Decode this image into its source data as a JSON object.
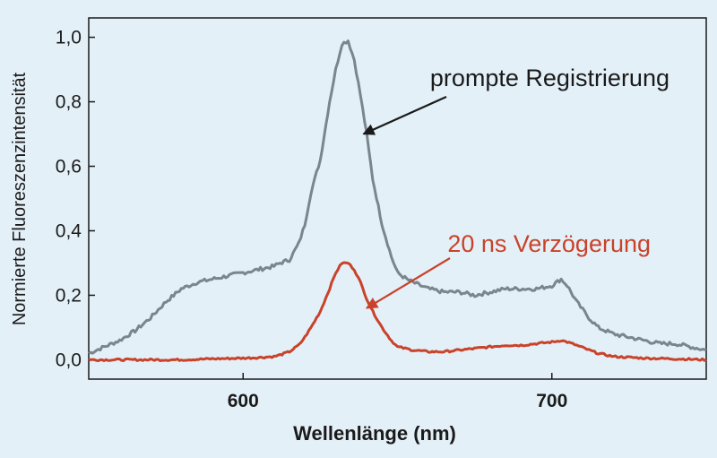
{
  "chart_data": {
    "type": "line",
    "title": "",
    "xlabel": "Wellenlänge (nm)",
    "ylabel": "Normierte Fluoreszenzintensität",
    "xlim": [
      550,
      750
    ],
    "ylim": [
      -0.06,
      1.06
    ],
    "x_ticks": [
      600,
      700
    ],
    "x_tick_labels": [
      "600",
      "700"
    ],
    "y_ticks": [
      0.0,
      0.2,
      0.4,
      0.6,
      0.8,
      1.0
    ],
    "y_tick_labels": [
      "0,0",
      "0,2",
      "0,4",
      "0,6",
      "0,8",
      "1,0"
    ],
    "grid": false,
    "series": [
      {
        "name": "prompte Registrierung",
        "color": "#7a868c",
        "x": [
          550,
          555,
          560,
          565,
          570,
          575,
          580,
          585,
          590,
          595,
          600,
          605,
          610,
          612,
          615,
          618,
          620,
          622,
          625,
          628,
          630,
          632,
          634,
          636,
          638,
          640,
          642,
          645,
          648,
          650,
          653,
          655,
          660,
          665,
          670,
          675,
          680,
          685,
          690,
          695,
          700,
          703,
          705,
          708,
          712,
          715,
          720,
          725,
          730,
          735,
          740,
          745,
          750
        ],
        "y": [
          0.02,
          0.04,
          0.06,
          0.09,
          0.13,
          0.18,
          0.22,
          0.24,
          0.25,
          0.26,
          0.27,
          0.28,
          0.29,
          0.3,
          0.31,
          0.36,
          0.42,
          0.52,
          0.62,
          0.8,
          0.9,
          0.98,
          0.99,
          0.93,
          0.82,
          0.7,
          0.56,
          0.42,
          0.32,
          0.27,
          0.25,
          0.24,
          0.22,
          0.21,
          0.21,
          0.2,
          0.21,
          0.22,
          0.22,
          0.22,
          0.23,
          0.25,
          0.23,
          0.18,
          0.13,
          0.1,
          0.08,
          0.07,
          0.06,
          0.05,
          0.05,
          0.04,
          0.03
        ]
      },
      {
        "name": "20 ns Verzögerung",
        "color": "#c8432a",
        "x": [
          550,
          560,
          570,
          580,
          590,
          600,
          605,
          610,
          612,
          615,
          618,
          620,
          622,
          625,
          628,
          630,
          632,
          634,
          636,
          638,
          640,
          642,
          645,
          648,
          650,
          655,
          660,
          665,
          670,
          675,
          680,
          685,
          690,
          695,
          700,
          703,
          705,
          708,
          712,
          715,
          720,
          730,
          740,
          750
        ],
        "y": [
          0.0,
          0.0,
          0.0,
          0.0,
          0.003,
          0.005,
          0.007,
          0.01,
          0.015,
          0.025,
          0.045,
          0.07,
          0.1,
          0.15,
          0.22,
          0.27,
          0.3,
          0.3,
          0.28,
          0.24,
          0.19,
          0.15,
          0.1,
          0.06,
          0.04,
          0.03,
          0.025,
          0.025,
          0.03,
          0.035,
          0.04,
          0.045,
          0.045,
          0.05,
          0.055,
          0.06,
          0.055,
          0.045,
          0.03,
          0.02,
          0.01,
          0.005,
          0.003,
          0.0
        ]
      }
    ],
    "annotations": [
      {
        "text": "prompte Registrierung",
        "color": "#1a1a1a",
        "arrow_to_x": 639,
        "arrow_to_y": 0.7
      },
      {
        "text": "20 ns Verzögerung",
        "color": "#c8432a",
        "arrow_to_x": 640,
        "arrow_to_y": 0.16
      }
    ]
  }
}
